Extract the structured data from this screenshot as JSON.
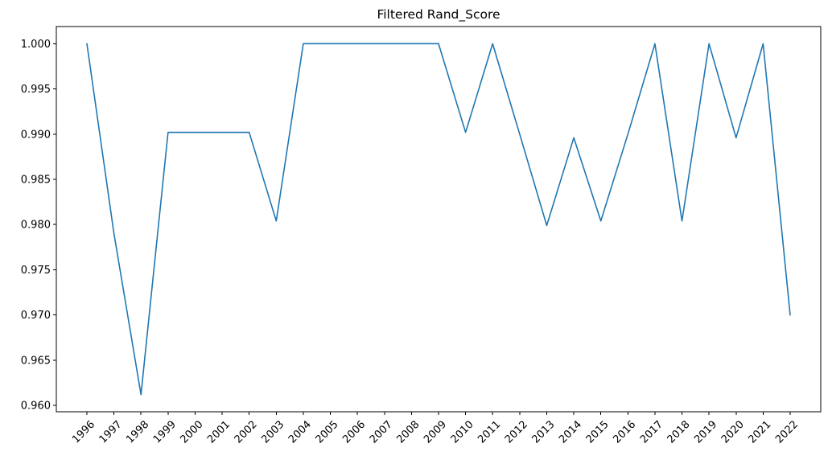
{
  "chart_data": {
    "type": "line",
    "title": "Filtered Rand_Score",
    "xlabel": "",
    "ylabel": "",
    "x": [
      "1996",
      "1997",
      "1998",
      "1999",
      "2000",
      "2001",
      "2002",
      "2003",
      "2004",
      "2005",
      "2006",
      "2007",
      "2008",
      "2009",
      "2010",
      "2011",
      "2012",
      "2013",
      "2014",
      "2015",
      "2016",
      "2017",
      "2018",
      "2019",
      "2020",
      "2021",
      "2022"
    ],
    "series": [
      {
        "color": "#1f77b4",
        "values": [
          1.0,
          0.979,
          0.9612,
          0.9902,
          0.9902,
          0.9902,
          0.9902,
          0.9804,
          1.0,
          1.0,
          1.0,
          1.0,
          1.0,
          1.0,
          0.9902,
          1.0,
          0.99,
          0.9799,
          0.9896,
          0.9804,
          0.99,
          1.0,
          0.9804,
          1.0,
          0.9896,
          1.0,
          0.97
        ]
      }
    ],
    "yticks": [
      "0.960",
      "0.965",
      "0.970",
      "0.975",
      "0.980",
      "0.985",
      "0.990",
      "0.995",
      "1.000"
    ],
    "ylim": [
      0.9593,
      1.0019
    ],
    "grid": false,
    "legend": "none",
    "x_tick_rotation": 45
  }
}
